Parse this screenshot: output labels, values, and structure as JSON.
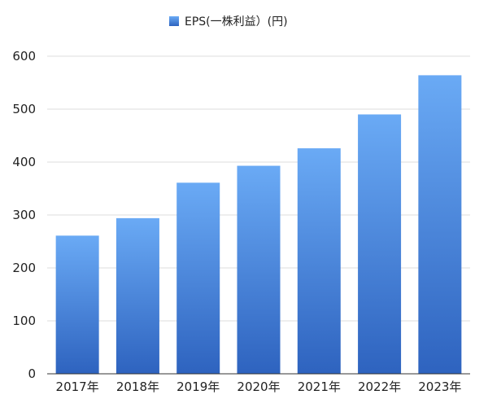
{
  "chart_data": {
    "type": "bar",
    "categories": [
      "2017年",
      "2018年",
      "2019年",
      "2020年",
      "2021年",
      "2022年",
      "2023年"
    ],
    "series": [
      {
        "name": "EPS(一株利益）(円)",
        "values": [
          261,
          294,
          361,
          393,
          426,
          490,
          564
        ]
      }
    ],
    "ylim": [
      0,
      600
    ],
    "yticks": [
      0,
      100,
      200,
      300,
      400,
      500,
      600
    ],
    "grid": true,
    "legend_position": "top-center",
    "colors": {
      "bar_top": "#6aaaf5",
      "bar_bottom": "#2e63bf",
      "grid": "#dddddd",
      "axis": "#333333"
    }
  }
}
